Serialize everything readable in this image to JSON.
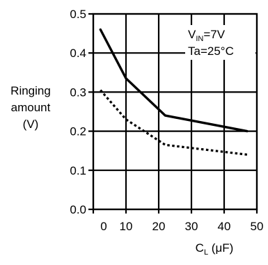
{
  "chart_data": {
    "type": "line",
    "ylabel_lines": [
      "Ringing",
      "amount",
      "(V)"
    ],
    "xlabel": {
      "main": "C",
      "sub": "L",
      "unit": " (μF)"
    },
    "annotation": {
      "line1": {
        "main": "V",
        "sub": "IN",
        "rest": "=7V"
      },
      "line2": "Ta=25°C"
    },
    "xlim": [
      0,
      50
    ],
    "ylim": [
      0,
      0.5
    ],
    "x_ticks": [
      0,
      10,
      20,
      30,
      40,
      50
    ],
    "x_tick_labels": [
      "0",
      "10",
      "20",
      "30",
      "40",
      "50"
    ],
    "y_ticks": [
      0,
      0.1,
      0.2,
      0.3,
      0.4,
      0.5
    ],
    "y_tick_labels": [
      "0.0",
      "0.1",
      "0.2",
      "0.3",
      "0.4",
      "0.5"
    ],
    "grid": true,
    "series": [
      {
        "style": "solid",
        "x": [
          2.2,
          10,
          22,
          47
        ],
        "y": [
          0.46,
          0.335,
          0.24,
          0.2
        ]
      },
      {
        "style": "dotted",
        "x": [
          2.2,
          10,
          22,
          47
        ],
        "y": [
          0.305,
          0.23,
          0.165,
          0.14
        ]
      }
    ]
  },
  "colors": {
    "ink": "#000000",
    "background": "#ffffff"
  }
}
